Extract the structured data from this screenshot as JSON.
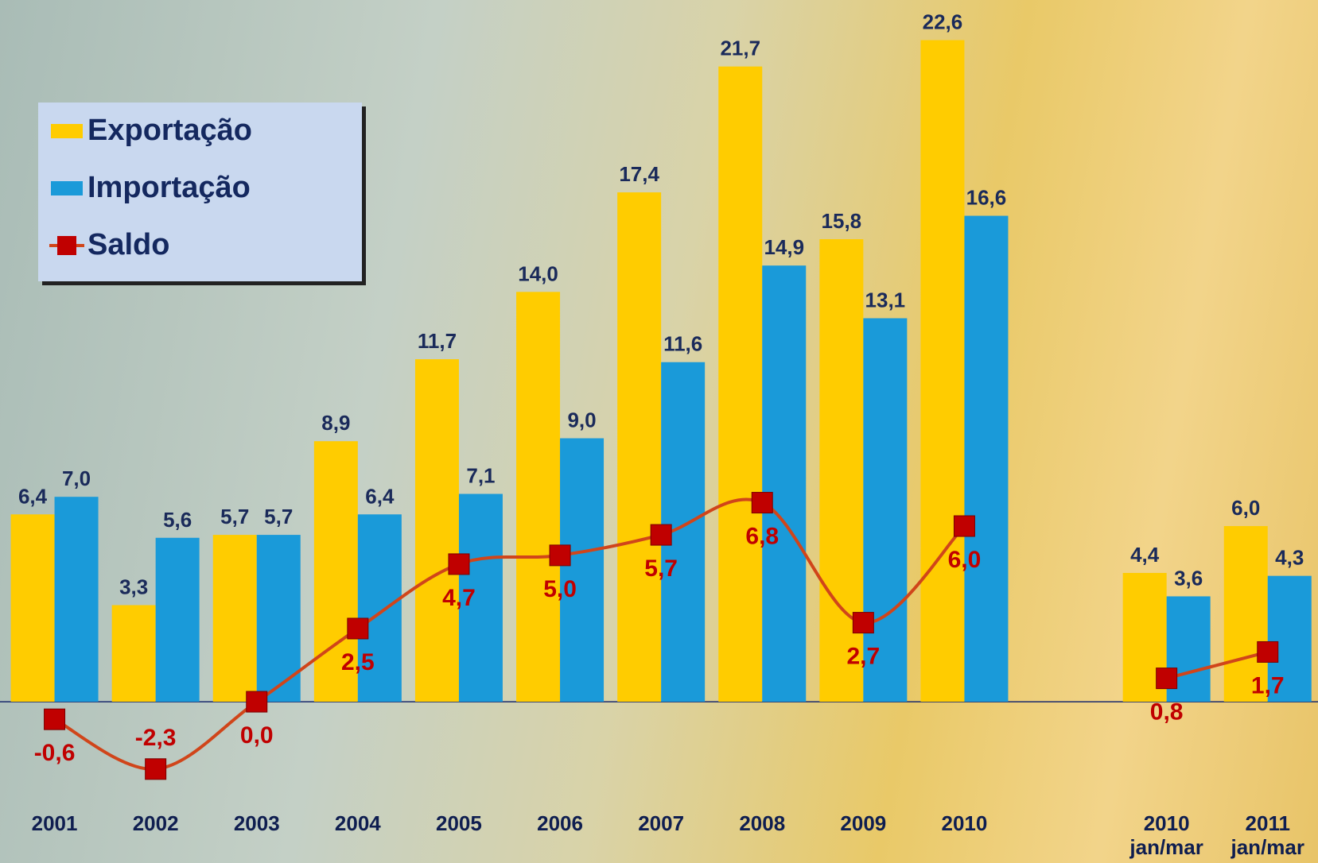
{
  "chart_data": {
    "type": "bar",
    "categories": [
      "2001",
      "2002",
      "2003",
      "2004",
      "2005",
      "2006",
      "2007",
      "2008",
      "2009",
      "2010",
      null,
      "2010\njan/mar",
      "2011\njan/mar"
    ],
    "series": [
      {
        "name": "Exportação",
        "type": "bar",
        "color": "#ffcc00",
        "values": [
          6.4,
          3.3,
          5.7,
          8.9,
          11.7,
          14.0,
          17.4,
          21.7,
          15.8,
          22.6,
          null,
          4.4,
          6.0
        ],
        "value_labels": [
          "6,4",
          "3,3",
          "5,7",
          "8,9",
          "11,7",
          "14,0",
          "17,4",
          "21,7",
          "15,8",
          "22,6",
          null,
          "4,4",
          "6,0"
        ]
      },
      {
        "name": "Importação",
        "type": "bar",
        "color": "#1a9ad9",
        "values": [
          7.0,
          5.6,
          5.7,
          6.4,
          7.1,
          9.0,
          11.6,
          14.9,
          13.1,
          16.6,
          null,
          3.6,
          4.3
        ],
        "value_labels": [
          "7,0",
          "5,6",
          "5,7",
          "6,4",
          "7,1",
          "9,0",
          "11,6",
          "14,9",
          "13,1",
          "16,6",
          null,
          "3,6",
          "4,3"
        ]
      },
      {
        "name": "Saldo",
        "type": "line",
        "color": "#c00000",
        "line_color": "#d0451a",
        "values": [
          -0.6,
          -2.3,
          0.0,
          2.5,
          4.7,
          5.0,
          5.7,
          6.8,
          2.7,
          6.0,
          null,
          0.8,
          1.7
        ],
        "value_labels": [
          "-0,6",
          "-2,3",
          "0,0",
          "2,5",
          "4,7",
          "5,0",
          "5,7",
          "6,8",
          "2,7",
          "6,0",
          null,
          "0,8",
          "1,7"
        ]
      }
    ],
    "ylim": [
      -3.5,
      23.7
    ],
    "grid": false,
    "legend": "upper left"
  }
}
